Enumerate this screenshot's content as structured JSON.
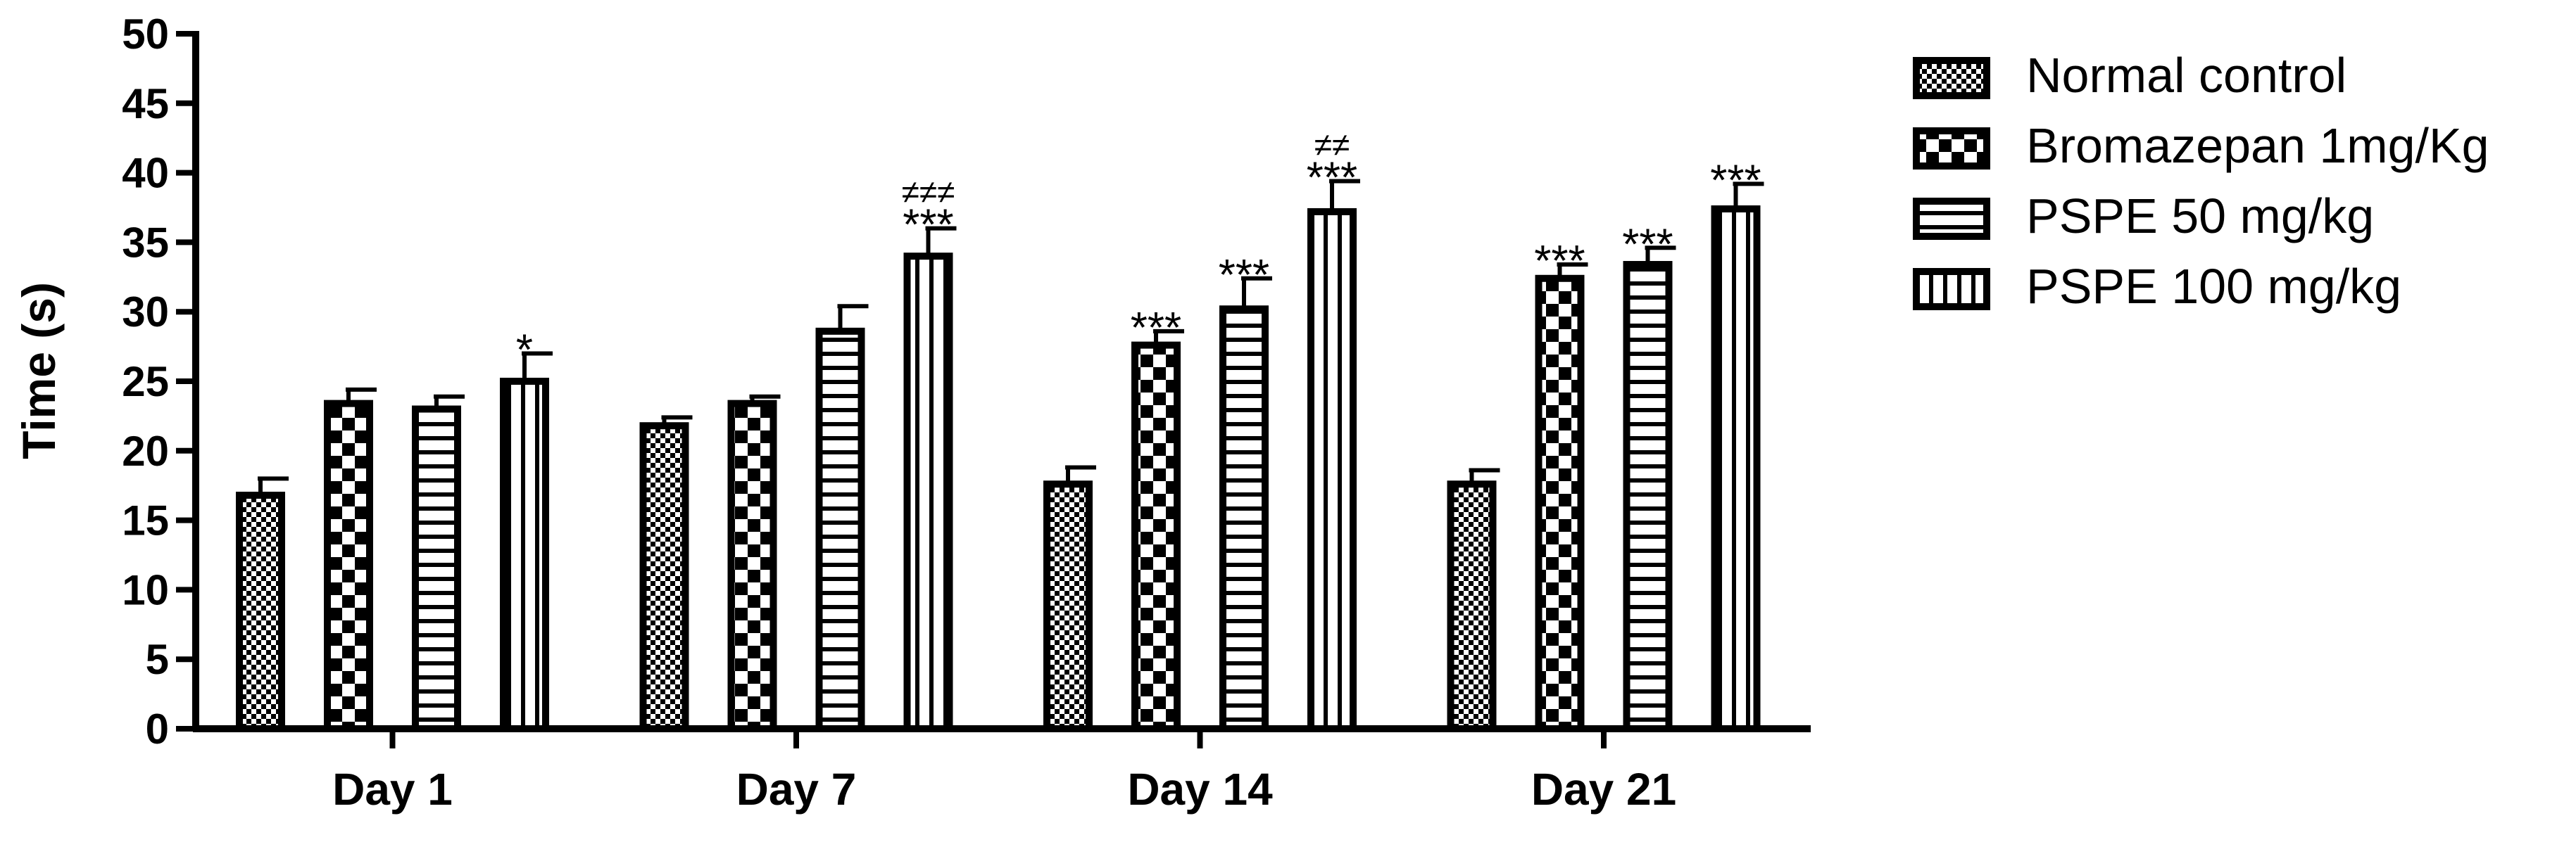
{
  "chart_data": {
    "type": "bar",
    "ylabel": "Time (s)",
    "xlabel": "",
    "ylim": [
      0,
      50
    ],
    "yticks": [
      0,
      5,
      10,
      15,
      20,
      25,
      30,
      35,
      40,
      45,
      50
    ],
    "categories": [
      "Day 1",
      "Day 7",
      "Day 14",
      "Day 21"
    ],
    "legend_position": "right",
    "series": [
      {
        "name": "Normal control",
        "pattern": "fine-dots",
        "values": [
          16.8,
          21.8,
          17.6,
          17.6
        ],
        "errors": [
          1.2,
          0.6,
          1.2,
          1.0
        ],
        "significance": [
          "",
          "",
          "",
          ""
        ],
        "comparison": [
          "",
          "",
          "",
          ""
        ]
      },
      {
        "name": "Bromazepan 1mg/Kg",
        "pattern": "checker",
        "values": [
          23.4,
          23.4,
          27.6,
          32.4
        ],
        "errors": [
          1.0,
          0.5,
          1.0,
          1.0
        ],
        "significance": [
          "",
          "",
          "***",
          "***"
        ],
        "comparison": [
          "",
          "",
          "",
          ""
        ]
      },
      {
        "name": "PSPE 50 mg/kg",
        "pattern": "horizontal-lines",
        "values": [
          23.0,
          28.6,
          30.2,
          33.4
        ],
        "errors": [
          0.9,
          1.8,
          2.2,
          1.2
        ],
        "significance": [
          "",
          "",
          "***",
          "***"
        ],
        "comparison": [
          "",
          "",
          "",
          ""
        ]
      },
      {
        "name": "PSPE 100 mg/kg",
        "pattern": "vertical-lines",
        "values": [
          25.0,
          34.0,
          37.2,
          37.4
        ],
        "errors": [
          2.0,
          2.0,
          2.2,
          1.8
        ],
        "significance": [
          "*",
          "***",
          "***",
          "***"
        ],
        "comparison": [
          "",
          "≠≠≠",
          "≠≠",
          ""
        ]
      }
    ]
  },
  "colors": {
    "bar_stroke": "#000000",
    "bar_fill": "#ffffff",
    "axis": "#000000"
  }
}
